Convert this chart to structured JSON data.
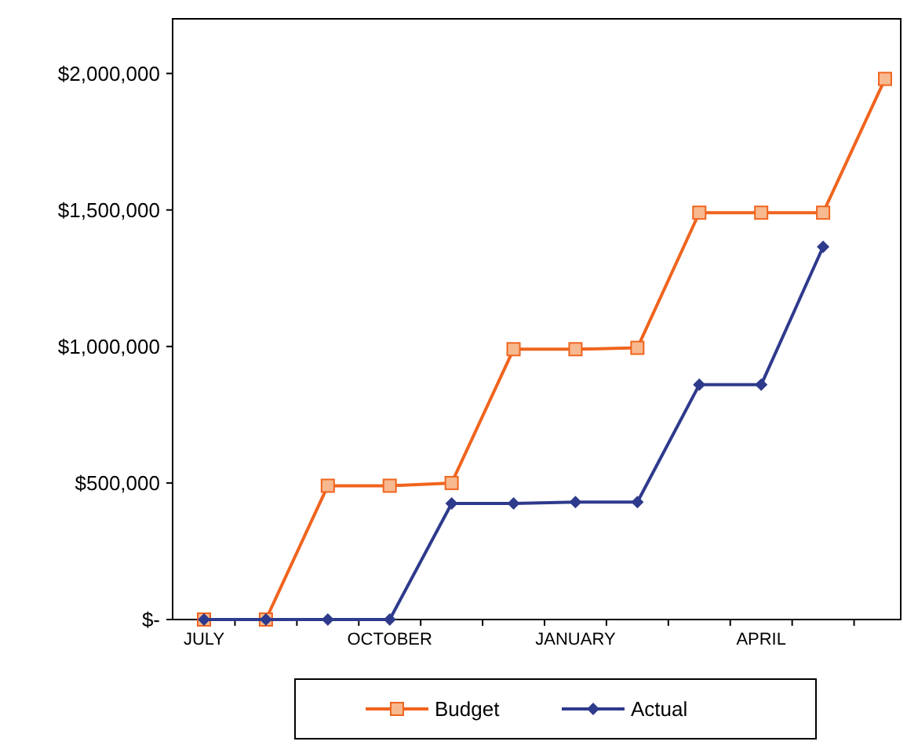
{
  "chart_data": {
    "type": "line",
    "categories": [
      "JULY",
      null,
      null,
      "OCTOBER",
      null,
      null,
      "JANUARY",
      null,
      null,
      "APRIL",
      null,
      null
    ],
    "series": [
      {
        "name": "Budget",
        "color": "#f0641e",
        "marker": "square",
        "values": [
          0,
          0,
          490000,
          490000,
          500000,
          990000,
          990000,
          995000,
          1490000,
          1490000,
          1490000,
          1980000
        ]
      },
      {
        "name": "Actual",
        "color": "#2e3a8c",
        "marker": "diamond",
        "values": [
          0,
          0,
          0,
          0,
          425000,
          425000,
          430000,
          430000,
          860000,
          860000,
          1365000,
          null
        ]
      }
    ],
    "ylim": [
      0,
      2200000
    ],
    "yticks": [
      {
        "value": 0,
        "label": "$-"
      },
      {
        "value": 500000,
        "label": "$500,000"
      },
      {
        "value": 1000000,
        "label": "$1,000,000"
      },
      {
        "value": 1500000,
        "label": "$1,500,000"
      },
      {
        "value": 2000000,
        "label": "$2,000,000"
      }
    ],
    "grid": false,
    "legend": "bottom",
    "line_style": "solid"
  }
}
